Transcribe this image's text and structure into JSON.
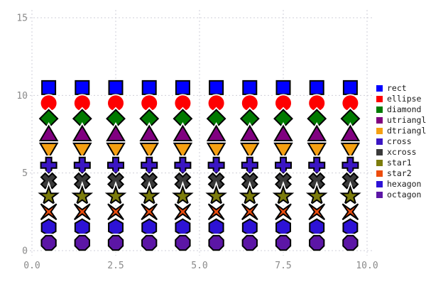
{
  "chart_data": {
    "type": "scatter",
    "title": "",
    "xlabel": "",
    "ylabel": "",
    "xlim": [
      0,
      10
    ],
    "ylim": [
      0,
      15
    ],
    "x": [
      0.5,
      1.5,
      2.5,
      3.5,
      4.5,
      5.5,
      6.5,
      7.5,
      8.5,
      9.5
    ],
    "series": [
      {
        "name": "rect",
        "marker": "rect",
        "color": "#0000ff",
        "y": 10.5
      },
      {
        "name": "ellipse",
        "marker": "ellipse",
        "color": "#fe0000",
        "y": 9.5
      },
      {
        "name": "diamond",
        "marker": "diamond",
        "color": "#007a00",
        "y": 8.5
      },
      {
        "name": "utriangle",
        "marker": "utriangle",
        "color": "#800080",
        "y": 7.5
      },
      {
        "name": "dtriangle",
        "marker": "dtriangle",
        "color": "#f5a012",
        "y": 6.5
      },
      {
        "name": "cross",
        "marker": "cross",
        "color": "#3b16c3",
        "y": 5.5
      },
      {
        "name": "xcross",
        "marker": "xcross",
        "color": "#3a3a3a",
        "y": 4.5
      },
      {
        "name": "star1",
        "marker": "star1",
        "color": "#7c7c0c",
        "y": 3.5
      },
      {
        "name": "star2",
        "marker": "star2",
        "color": "#ed4d0d",
        "y": 2.5
      },
      {
        "name": "hexagon",
        "marker": "hexagon",
        "color": "#2d12d6",
        "y": 1.5
      },
      {
        "name": "octagon",
        "marker": "octagon",
        "color": "#5c16a6",
        "y": 0.5
      }
    ],
    "x_ticks": {
      "values": [
        0,
        2.5,
        5,
        7.5,
        10
      ],
      "labels": [
        "0.0",
        "2.5",
        "5.0",
        "7.5",
        "10.0"
      ]
    },
    "y_ticks": {
      "values": [
        0,
        5,
        10,
        15
      ],
      "labels": [
        "0",
        "5",
        "10",
        "15"
      ]
    },
    "grid": {
      "visible": true,
      "style": "dashed",
      "color": "#cfcfd8"
    },
    "legend": {
      "position": "right"
    },
    "marker_outline_color": "#000000",
    "marker_halo_color": "#ffffff",
    "tick_label_color": "#8a8a8a",
    "background_color": "#ffffff"
  }
}
